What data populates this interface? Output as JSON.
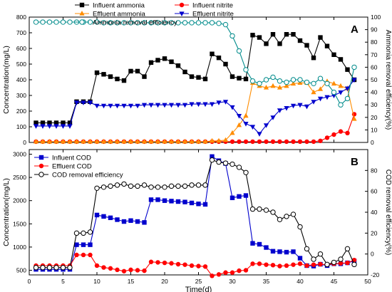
{
  "chart_data": [
    {
      "type": "line",
      "panel_label": "A",
      "xlim": [
        0,
        50
      ],
      "ylim_left": [
        0,
        800
      ],
      "ylim_right": [
        0,
        100
      ],
      "yticks_left": [
        "0",
        "100",
        "200",
        "300",
        "400",
        "500",
        "600",
        "700",
        "800"
      ],
      "yticks_right": [
        "0",
        "10",
        "20",
        "30",
        "40",
        "50",
        "60",
        "70",
        "80",
        "90",
        "100"
      ],
      "ylabel_left": "Concentration(mg/L)",
      "ylabel_right": "Ammonia removal efficiency(%)",
      "grid": false,
      "legend": "top",
      "series": [
        {
          "name": "Influent ammonia",
          "axis": "left",
          "color": "#000000",
          "marker": "square",
          "x": [
            1,
            2,
            3,
            4,
            5,
            6,
            7,
            8,
            9,
            10,
            11,
            12,
            13,
            14,
            15,
            16,
            17,
            18,
            19,
            20,
            21,
            22,
            23,
            24,
            25,
            26,
            27,
            28,
            29,
            30,
            31,
            32,
            33,
            34,
            35,
            36,
            37,
            38,
            39,
            40,
            41,
            42,
            43,
            44,
            45,
            46,
            47,
            48
          ],
          "y": [
            125,
            125,
            125,
            125,
            125,
            125,
            260,
            260,
            260,
            445,
            435,
            420,
            405,
            395,
            455,
            455,
            420,
            510,
            525,
            535,
            515,
            490,
            450,
            420,
            415,
            405,
            565,
            540,
            500,
            420,
            410,
            405,
            685,
            670,
            630,
            690,
            630,
            690,
            690,
            650,
            620,
            540,
            670,
            615,
            560,
            530,
            465,
            400
          ]
        },
        {
          "name": "Influent nitrite",
          "axis": "left",
          "color": "#ff0000",
          "marker": "circle",
          "x": [
            1,
            2,
            3,
            4,
            5,
            6,
            7,
            8,
            9,
            10,
            11,
            12,
            13,
            14,
            15,
            16,
            17,
            18,
            19,
            20,
            21,
            22,
            23,
            24,
            25,
            26,
            27,
            28,
            29,
            30,
            31,
            32,
            33,
            34,
            35,
            36,
            37,
            38,
            39,
            40,
            41,
            42,
            43,
            44,
            45,
            46,
            47,
            48
          ],
          "y": [
            5,
            5,
            5,
            5,
            5,
            5,
            5,
            5,
            5,
            5,
            5,
            5,
            5,
            5,
            5,
            5,
            5,
            5,
            5,
            5,
            5,
            5,
            5,
            5,
            5,
            5,
            5,
            5,
            5,
            5,
            5,
            5,
            5,
            5,
            5,
            5,
            5,
            5,
            5,
            5,
            5,
            5,
            10,
            30,
            50,
            70,
            60,
            180
          ]
        },
        {
          "name": "Effluent ammonia",
          "axis": "left",
          "color": "#ff8c00",
          "marker": "triangle",
          "x": [
            1,
            2,
            3,
            4,
            5,
            6,
            7,
            8,
            9,
            10,
            11,
            12,
            13,
            14,
            15,
            16,
            17,
            18,
            19,
            20,
            21,
            22,
            23,
            24,
            25,
            26,
            27,
            28,
            29,
            30,
            31,
            32,
            33,
            34,
            35,
            36,
            37,
            38,
            39,
            40,
            41,
            42,
            43,
            44,
            45,
            46,
            47,
            48
          ],
          "y": [
            5,
            5,
            5,
            5,
            5,
            5,
            5,
            5,
            5,
            5,
            5,
            5,
            5,
            5,
            5,
            5,
            5,
            5,
            5,
            5,
            5,
            5,
            5,
            5,
            5,
            5,
            10,
            10,
            15,
            60,
            110,
            170,
            380,
            360,
            350,
            360,
            350,
            360,
            375,
            380,
            380,
            320,
            340,
            390,
            375,
            360,
            345,
            150
          ]
        },
        {
          "name": "Effluent nitrite",
          "axis": "left",
          "color": "#0000cd",
          "marker": "triangle-down",
          "x": [
            1,
            2,
            3,
            4,
            5,
            6,
            7,
            8,
            9,
            10,
            11,
            12,
            13,
            14,
            15,
            16,
            17,
            18,
            19,
            20,
            21,
            22,
            23,
            24,
            25,
            26,
            27,
            28,
            29,
            30,
            31,
            32,
            33,
            34,
            35,
            36,
            37,
            38,
            39,
            40,
            41,
            42,
            43,
            44,
            45,
            46,
            47,
            48
          ],
          "y": [
            105,
            105,
            105,
            105,
            105,
            105,
            255,
            255,
            255,
            235,
            235,
            235,
            235,
            235,
            235,
            235,
            240,
            240,
            240,
            240,
            240,
            240,
            240,
            245,
            245,
            245,
            245,
            255,
            260,
            225,
            170,
            120,
            100,
            55,
            110,
            160,
            205,
            220,
            235,
            240,
            230,
            260,
            280,
            290,
            300,
            320,
            345,
            400
          ]
        },
        {
          "name": "Ammonia removal efficiency",
          "axis": "right",
          "color": "#008b8b",
          "marker": "open-circle",
          "x": [
            1,
            2,
            3,
            4,
            5,
            6,
            7,
            8,
            9,
            10,
            11,
            12,
            13,
            14,
            15,
            16,
            17,
            18,
            19,
            20,
            21,
            22,
            23,
            24,
            25,
            26,
            27,
            28,
            29,
            30,
            31,
            32,
            33,
            34,
            35,
            36,
            37,
            38,
            39,
            40,
            41,
            42,
            43,
            44,
            45,
            46,
            47,
            48
          ],
          "y": [
            96,
            96,
            96,
            96,
            96,
            96,
            96,
            96,
            96,
            96,
            95.5,
            95.5,
            95.5,
            95.5,
            95.5,
            95.5,
            95.5,
            95.5,
            95.5,
            95.5,
            95.5,
            95.5,
            95.5,
            95.5,
            95.5,
            95.5,
            95.5,
            95,
            94,
            85,
            73,
            58,
            49,
            47,
            50,
            52,
            49,
            48,
            50,
            50,
            48,
            47,
            51,
            47,
            40,
            30,
            35,
            60
          ]
        }
      ]
    },
    {
      "type": "line",
      "panel_label": "B",
      "xlim": [
        0,
        50
      ],
      "ylim_left": [
        400,
        3100
      ],
      "ylim_right": [
        -20,
        100
      ],
      "xticks": [
        "0",
        "5",
        "10",
        "15",
        "20",
        "25",
        "30",
        "35",
        "40",
        "45",
        "50"
      ],
      "yticks_left": [
        "500",
        "1000",
        "1500",
        "2000",
        "2500",
        "3000"
      ],
      "yticks_right": [
        "-20",
        "0",
        "20",
        "40",
        "60",
        "80"
      ],
      "xlabel": "Time(d)",
      "ylabel_left": "Concentration(mg/L)",
      "ylabel_right": "COD removal efficiency(%)",
      "grid": false,
      "legend": "top-left",
      "series": [
        {
          "name": "Influent COD",
          "axis": "left",
          "color": "#0000cd",
          "marker": "square",
          "x": [
            1,
            2,
            3,
            4,
            5,
            6,
            7,
            8,
            9,
            10,
            11,
            12,
            13,
            14,
            15,
            16,
            17,
            18,
            19,
            20,
            21,
            22,
            23,
            24,
            25,
            26,
            27,
            28,
            29,
            30,
            31,
            32,
            33,
            34,
            35,
            36,
            37,
            38,
            39,
            40,
            41,
            42,
            43,
            44,
            45,
            46,
            47,
            48
          ],
          "y": [
            520,
            520,
            520,
            520,
            520,
            520,
            1050,
            1050,
            1050,
            1690,
            1660,
            1630,
            1590,
            1550,
            1570,
            1550,
            1530,
            2020,
            2020,
            2000,
            1990,
            1980,
            1970,
            1950,
            1930,
            1920,
            2950,
            2860,
            2800,
            2060,
            2090,
            2110,
            1080,
            1060,
            990,
            910,
            900,
            890,
            900,
            760,
            600,
            590,
            630,
            600,
            640,
            640,
            660,
            700
          ]
        },
        {
          "name": "Effluent COD",
          "axis": "left",
          "color": "#ff0000",
          "marker": "circle",
          "x": [
            1,
            2,
            3,
            4,
            5,
            6,
            7,
            8,
            9,
            10,
            11,
            12,
            13,
            14,
            15,
            16,
            17,
            18,
            19,
            20,
            21,
            22,
            23,
            24,
            25,
            26,
            27,
            28,
            29,
            30,
            31,
            32,
            33,
            34,
            35,
            36,
            37,
            38,
            39,
            40,
            41,
            42,
            43,
            44,
            45,
            46,
            47,
            48
          ],
          "y": [
            600,
            600,
            600,
            600,
            600,
            600,
            830,
            830,
            830,
            600,
            560,
            540,
            510,
            480,
            510,
            500,
            490,
            680,
            670,
            660,
            650,
            630,
            620,
            600,
            590,
            580,
            380,
            410,
            450,
            450,
            490,
            500,
            640,
            640,
            620,
            610,
            590,
            600,
            620,
            640,
            600,
            620,
            630,
            620,
            640,
            650,
            660,
            720
          ]
        },
        {
          "name": "COD removal efficiency",
          "axis": "right",
          "color": "#000000",
          "marker": "open-circle",
          "x": [
            1,
            2,
            3,
            4,
            5,
            6,
            7,
            8,
            9,
            10,
            11,
            12,
            13,
            14,
            15,
            16,
            17,
            18,
            19,
            20,
            21,
            22,
            23,
            24,
            25,
            26,
            27,
            28,
            29,
            30,
            31,
            32,
            33,
            34,
            35,
            36,
            37,
            38,
            39,
            40,
            41,
            42,
            43,
            44,
            45,
            46,
            47,
            48
          ],
          "y": [
            -13,
            -13,
            -13,
            -13,
            -13,
            -13,
            20,
            20,
            21,
            63,
            64,
            65,
            66,
            67,
            65,
            65,
            66,
            64,
            64,
            64,
            65,
            65,
            65,
            66,
            66,
            66,
            90,
            88,
            87,
            86,
            83,
            78,
            43,
            43,
            42,
            40,
            33,
            36,
            38,
            26,
            5,
            -5,
            0,
            -10,
            -8,
            -5,
            5,
            -10
          ]
        }
      ]
    }
  ]
}
